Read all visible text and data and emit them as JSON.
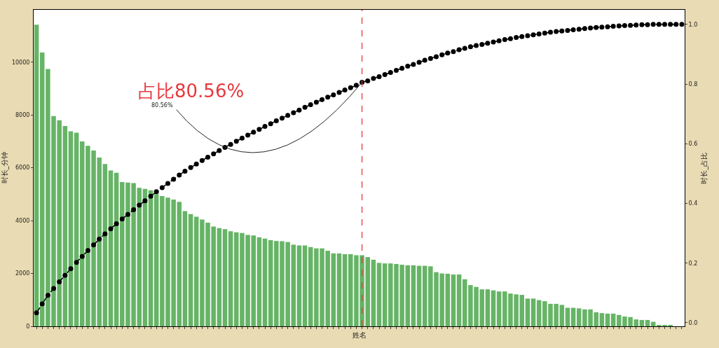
{
  "chart_data": {
    "type": "bar",
    "xlabel": "姓名",
    "ylabel": "时长_分钟",
    "y2label": "时长_占比",
    "categories": [
      null,
      null,
      null,
      null,
      null,
      null,
      null,
      null,
      null,
      null,
      null,
      null,
      null,
      null,
      null,
      null,
      null,
      null,
      null,
      null,
      null,
      null,
      null,
      null,
      null,
      null,
      null,
      null,
      null,
      null,
      null,
      null,
      null,
      null,
      null,
      null,
      null,
      null,
      null,
      null,
      null,
      null,
      null,
      null,
      null,
      null,
      null,
      null,
      null,
      null,
      null,
      null,
      null,
      null,
      null,
      null,
      null,
      null,
      null,
      null,
      null,
      null,
      null,
      null,
      null,
      null,
      null,
      null,
      null,
      null,
      null,
      null,
      null,
      null,
      null,
      null,
      null,
      null,
      null,
      null,
      null,
      null,
      null,
      null,
      null,
      null,
      null,
      null,
      null,
      null,
      null,
      null,
      null,
      null,
      null,
      null,
      null,
      null,
      null,
      null,
      null,
      null,
      null,
      null,
      null,
      null,
      null,
      null,
      null,
      null,
      null,
      null,
      null,
      null
    ],
    "series": [
      {
        "color": "#66b466",
        "values": [
          11420,
          10360,
          9740,
          7960,
          7800,
          7580,
          7380,
          7330,
          7000,
          6830,
          6650,
          6390,
          6140,
          5900,
          5810,
          5460,
          5440,
          5420,
          5240,
          5200,
          5150,
          5000,
          4930,
          4870,
          4800,
          4710,
          4360,
          4250,
          4150,
          4040,
          3920,
          3780,
          3720,
          3680,
          3600,
          3560,
          3530,
          3460,
          3440,
          3370,
          3320,
          3260,
          3230,
          3220,
          3190,
          3090,
          3060,
          3060,
          3000,
          2950,
          2950,
          2860,
          2760,
          2760,
          2730,
          2730,
          2690,
          2690,
          2620,
          2520,
          2400,
          2380,
          2380,
          2360,
          2330,
          2310,
          2310,
          2290,
          2290,
          2270,
          2050,
          2000,
          1990,
          1960,
          1960,
          1780,
          1560,
          1490,
          1400,
          1400,
          1360,
          1320,
          1320,
          1240,
          1210,
          1190,
          1050,
          1050,
          990,
          950,
          850,
          850,
          810,
          700,
          700,
          680,
          640,
          640,
          530,
          500,
          480,
          480,
          430,
          370,
          350,
          260,
          240,
          240,
          170,
          40,
          30,
          30,
          0,
          0
        ]
      },
      {
        "type": "line",
        "axis": "y2",
        "color": "#000000",
        "marker": "circle",
        "line_style": "dashed",
        "values": [
          0.033,
          0.063,
          0.092,
          0.115,
          0.137,
          0.159,
          0.181,
          0.202,
          0.222,
          0.242,
          0.261,
          0.28,
          0.298,
          0.315,
          0.332,
          0.348,
          0.363,
          0.379,
          0.394,
          0.409,
          0.424,
          0.439,
          0.453,
          0.467,
          0.481,
          0.495,
          0.508,
          0.52,
          0.532,
          0.544,
          0.555,
          0.566,
          0.577,
          0.588,
          0.598,
          0.608,
          0.619,
          0.629,
          0.639,
          0.648,
          0.658,
          0.667,
          0.677,
          0.686,
          0.695,
          0.704,
          0.713,
          0.722,
          0.731,
          0.739,
          0.748,
          0.756,
          0.764,
          0.772,
          0.78,
          0.788,
          0.796,
          0.806,
          0.811,
          0.819,
          0.825,
          0.832,
          0.839,
          0.846,
          0.853,
          0.86,
          0.866,
          0.873,
          0.88,
          0.886,
          0.892,
          0.898,
          0.904,
          0.909,
          0.915,
          0.92,
          0.925,
          0.929,
          0.933,
          0.937,
          0.941,
          0.945,
          0.949,
          0.952,
          0.956,
          0.959,
          0.962,
          0.965,
          0.968,
          0.971,
          0.974,
          0.976,
          0.978,
          0.98,
          0.982,
          0.984,
          0.986,
          0.988,
          0.99,
          0.991,
          0.992,
          0.994,
          0.995,
          0.996,
          0.997,
          0.998,
          0.999,
          0.999,
          1.0,
          1.0,
          1.0,
          1.0,
          1.0,
          1.0
        ]
      }
    ],
    "ylim": [
      0,
      11980
    ],
    "yticks": [
      0,
      2000,
      4000,
      6000,
      8000,
      10000
    ],
    "y2lim": [
      -0.012,
      1.049
    ],
    "y2ticks": [
      {
        "value": 0,
        "label": "0.0"
      },
      0.2,
      0.4,
      0.6,
      0.8,
      {
        "value": 1,
        "label": "1.0"
      }
    ],
    "annotations": [
      "占比80.56%",
      "80.56%"
    ],
    "grid": false
  }
}
